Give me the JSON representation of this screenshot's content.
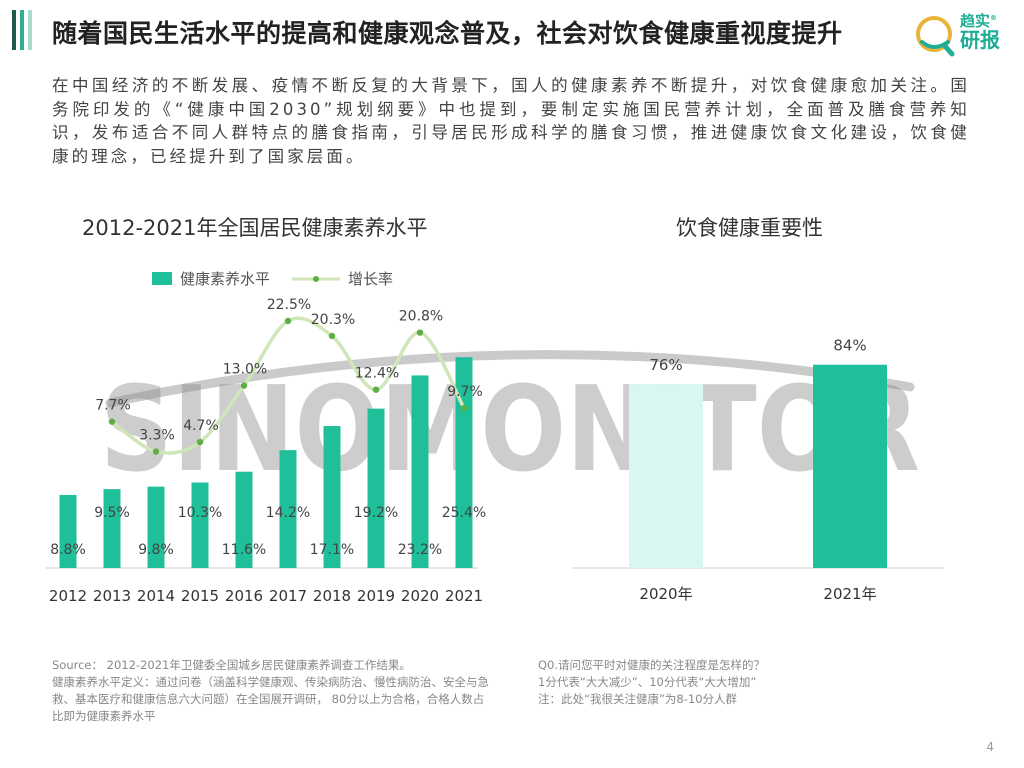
{
  "page": {
    "title": "随着国民生活水平的提高和健康观念普及，社会对饮食健康重视度提升",
    "intro": "在中国经济的不断发展、疫情不断反复的大背景下，国人的健康素养不断提升，对饮食健康愈加关注。国务院印发的《“健康中国2030”规划纲要》中也提到，要制定实施国民营养计划，全面普及膳食营养知识，发布适合不同人群特点的膳食指南，引导居民形成科学的膳食习惯，推进健康饮食文化建设，饮食健康的理念，已经提升到了国家层面。",
    "page_number": "4"
  },
  "logo": {
    "line1": "趋实",
    "line2": "研报",
    "mark": "®",
    "icon": "q-magnifier-icon"
  },
  "watermark": {
    "text": "SINOMONITOR"
  },
  "colors": {
    "primary": "#1fbf99",
    "light": "#d9f7f1",
    "line": "#cfe6b8",
    "dot": "#5fae45",
    "deco": [
      "#1f5a4e",
      "#2fae92",
      "#a7dccb"
    ]
  },
  "chart_data": [
    {
      "type": "bar",
      "title": "2012-2021年全国居民健康素养水平",
      "categories": [
        "2012",
        "2013",
        "2014",
        "2015",
        "2016",
        "2017",
        "2018",
        "2019",
        "2020",
        "2021"
      ],
      "series": [
        {
          "name": "健康素养水平",
          "kind": "bar",
          "values": [
            8.8,
            9.5,
            9.8,
            10.3,
            11.6,
            14.2,
            17.1,
            19.2,
            23.2,
            25.4
          ],
          "labels": [
            "8.8%",
            "9.5%",
            "9.8%",
            "10.3%",
            "11.6%",
            "14.2%",
            "17.1%",
            "19.2%",
            "23.2%",
            "25.4%"
          ]
        },
        {
          "name": "增长率",
          "kind": "line",
          "values": [
            null,
            7.7,
            3.3,
            4.7,
            13.0,
            22.5,
            20.3,
            12.4,
            20.8,
            9.7
          ],
          "labels": [
            "",
            "7.7%",
            "3.3%",
            "4.7%",
            "13.0%",
            "22.5%",
            "20.3%",
            "12.4%",
            "20.8%",
            "9.7%"
          ]
        }
      ],
      "legend_position": "top-left",
      "grid": false
    },
    {
      "type": "bar",
      "title": "饮食健康重要性",
      "categories": [
        "2020年",
        "2021年"
      ],
      "values": [
        76,
        84
      ],
      "labels": [
        "76%",
        "84%"
      ],
      "grid": false
    }
  ],
  "source": {
    "line1": "Source： 2012-2021年卫健委全国城乡居民健康素养调查工作结果。",
    "line2": "健康素养水平定义：通过问卷（涵盖科学健康观、传染病防治、慢性病防治、安全与急救、基本医疗和健康信息六大问题）在全国展开调研， 80分以上为合格，合格人数占比即为健康素养水平"
  },
  "note": {
    "q": "Q0.请问您平时对健康的关注程度是怎样的？",
    "scale": "1分代表“大大减少”、10分代表“大大增加”",
    "remark": "注：此处“我很关注健康”为8-10分人群"
  }
}
